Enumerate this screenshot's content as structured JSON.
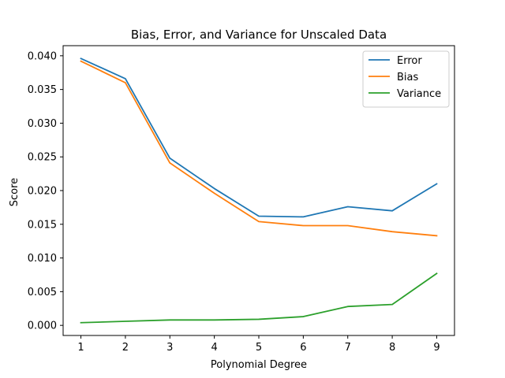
{
  "chart_data": {
    "type": "line",
    "title": "Bias, Error, and Variance for Unscaled Data",
    "xlabel": "Polynomial Degree",
    "ylabel": "Score",
    "x": [
      1,
      2,
      3,
      4,
      5,
      6,
      7,
      8,
      9
    ],
    "xlim": [
      0.6,
      9.4
    ],
    "ylim": [
      -0.0015,
      0.0415
    ],
    "xticks": [
      "1",
      "2",
      "3",
      "4",
      "5",
      "6",
      "7",
      "8",
      "9"
    ],
    "yticks": [
      "0.000",
      "0.005",
      "0.010",
      "0.015",
      "0.020",
      "0.025",
      "0.030",
      "0.035",
      "0.040"
    ],
    "ytick_values": [
      0.0,
      0.005,
      0.01,
      0.015,
      0.02,
      0.025,
      0.03,
      0.035,
      0.04
    ],
    "grid": false,
    "legend_position": "top-right",
    "series": [
      {
        "name": "Error",
        "color": "#1f77b4",
        "values": [
          0.0396,
          0.0366,
          0.0248,
          0.0203,
          0.0162,
          0.0161,
          0.0176,
          0.017,
          0.021
        ]
      },
      {
        "name": "Bias",
        "color": "#ff7f0e",
        "values": [
          0.0392,
          0.036,
          0.0241,
          0.0196,
          0.0154,
          0.0148,
          0.0148,
          0.0139,
          0.0133
        ]
      },
      {
        "name": "Variance",
        "color": "#2ca02c",
        "values": [
          0.0004,
          0.0006,
          0.0008,
          0.0008,
          0.0009,
          0.0013,
          0.0028,
          0.0031,
          0.0077
        ]
      }
    ]
  }
}
